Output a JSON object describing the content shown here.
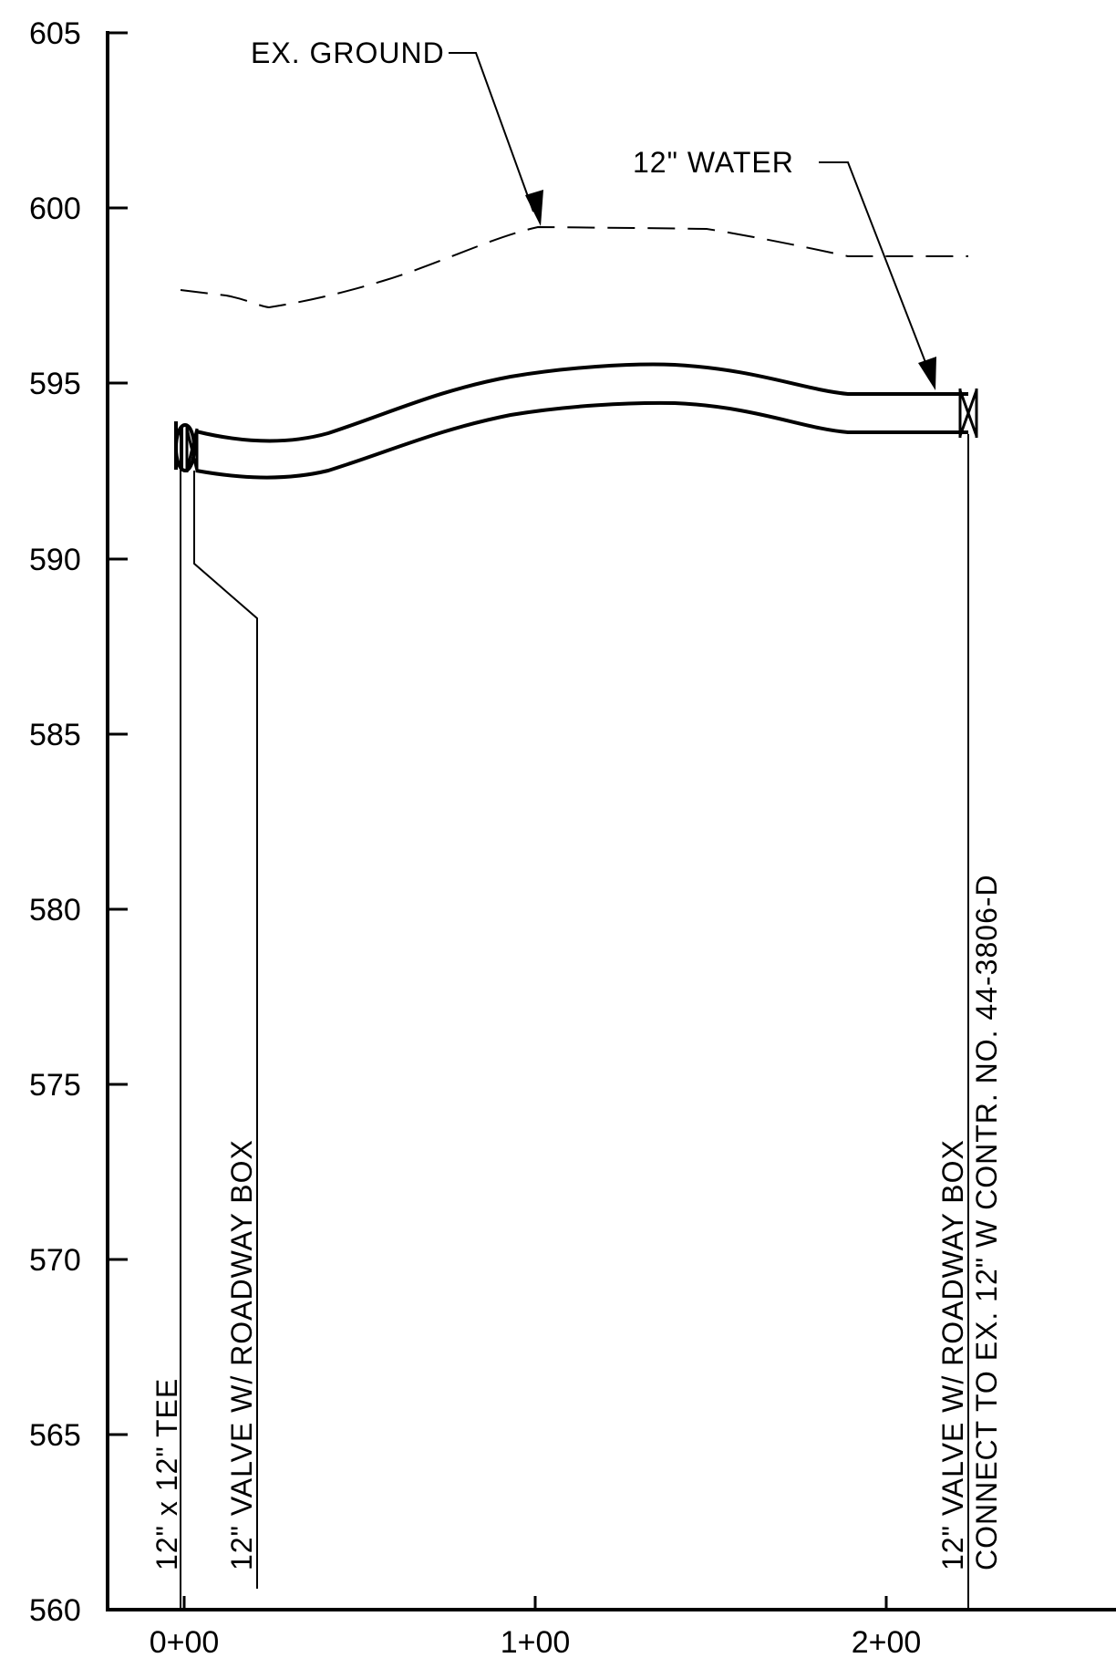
{
  "chart_data": {
    "type": "profile",
    "y_ticks": [
      "605",
      "600",
      "595",
      "590",
      "585",
      "580",
      "575",
      "570",
      "565",
      "560"
    ],
    "x_ticks": [
      "0+00",
      "1+00",
      "2+00"
    ],
    "ylim": [
      560,
      605
    ],
    "xlim_stations": [
      0,
      265
    ],
    "labels": {
      "ex_ground": "EX. GROUND",
      "water": "12\" WATER",
      "tee": "12\" x 12\" TEE",
      "valve_left": "12\" VALVE W/ ROADWAY BOX",
      "valve_right": "12\" VALVE W/ ROADWAY BOX",
      "connect": "CONNECT TO EX. 12\" W CONTR. NO. 44-3806-D"
    },
    "ex_ground": [
      {
        "x": 0,
        "y": 597.6
      },
      {
        "x": 22,
        "y": 597.1
      },
      {
        "x": 50,
        "y": 597.7
      },
      {
        "x": 100,
        "y": 599.4
      },
      {
        "x": 150,
        "y": 599.3
      },
      {
        "x": 200,
        "y": 598.6
      },
      {
        "x": 224,
        "y": 598.6
      }
    ],
    "pipe_top": [
      {
        "x": 4,
        "y": 593.6
      },
      {
        "x": 30,
        "y": 593.3
      },
      {
        "x": 60,
        "y": 594.1
      },
      {
        "x": 100,
        "y": 595.2
      },
      {
        "x": 140,
        "y": 595.5
      },
      {
        "x": 180,
        "y": 595.0
      },
      {
        "x": 224,
        "y": 594.6
      }
    ],
    "pipe_bottom": [
      {
        "x": 4,
        "y": 592.6
      },
      {
        "x": 30,
        "y": 592.3
      },
      {
        "x": 60,
        "y": 593.1
      },
      {
        "x": 100,
        "y": 594.2
      },
      {
        "x": 140,
        "y": 594.4
      },
      {
        "x": 180,
        "y": 593.9
      },
      {
        "x": 224,
        "y": 593.6
      }
    ]
  }
}
